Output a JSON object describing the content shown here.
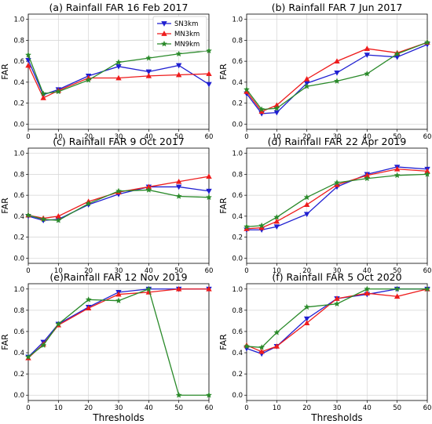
{
  "chart_data": [
    {
      "type": "line",
      "title": "(a) Rainfall FAR 16 Feb 2017",
      "xlabel": "",
      "ylabel": "FAR",
      "xlim": [
        0,
        60
      ],
      "ylim": [
        -0.05,
        1.05
      ],
      "xticks": [
        0,
        10,
        20,
        30,
        40,
        50,
        60
      ],
      "yticks": [
        0.0,
        0.2,
        0.4,
        0.6,
        0.8,
        1.0
      ],
      "grid": true,
      "legend": "top-right",
      "x": [
        0,
        5,
        10,
        20,
        30,
        40,
        50,
        60
      ],
      "series": [
        {
          "name": "SN3km",
          "color": "#1f1fd1",
          "marker": "triangle-down",
          "values": [
            0.61,
            0.28,
            0.33,
            0.46,
            0.55,
            0.5,
            0.56,
            0.38
          ]
        },
        {
          "name": "MN3km",
          "color": "#ee1c1c",
          "marker": "triangle-up",
          "values": [
            0.56,
            0.25,
            0.32,
            0.44,
            0.44,
            0.46,
            0.47,
            0.48
          ]
        },
        {
          "name": "MN9km",
          "color": "#2a8a2a",
          "marker": "star",
          "values": [
            0.66,
            0.29,
            0.31,
            0.42,
            0.59,
            0.63,
            0.67,
            0.7
          ]
        }
      ]
    },
    {
      "type": "line",
      "title": "(b) Rainfall FAR 7 Jun 2017",
      "xlabel": "",
      "ylabel": "FAR",
      "xlim": [
        0,
        60
      ],
      "ylim": [
        -0.05,
        1.05
      ],
      "xticks": [
        0,
        10,
        20,
        30,
        40,
        50,
        60
      ],
      "yticks": [
        0.0,
        0.2,
        0.4,
        0.6,
        0.8,
        1.0
      ],
      "grid": true,
      "x": [
        0,
        5,
        10,
        20,
        30,
        40,
        50,
        60
      ],
      "series": [
        {
          "color": "#1f1fd1",
          "marker": "triangle-down",
          "values": [
            0.29,
            0.1,
            0.11,
            0.39,
            0.49,
            0.66,
            0.64,
            0.76
          ]
        },
        {
          "color": "#ee1c1c",
          "marker": "triangle-up",
          "values": [
            0.31,
            0.12,
            0.18,
            0.43,
            0.6,
            0.72,
            0.68,
            0.78
          ]
        },
        {
          "color": "#2a8a2a",
          "marker": "star",
          "values": [
            0.33,
            0.14,
            0.15,
            0.36,
            0.41,
            0.48,
            0.67,
            0.78
          ]
        }
      ]
    },
    {
      "type": "line",
      "title": "(c) Rainfall FAR 9 Oct 2017",
      "xlabel": "",
      "ylabel": "FAR",
      "xlim": [
        0,
        60
      ],
      "ylim": [
        -0.05,
        1.05
      ],
      "xticks": [
        0,
        10,
        20,
        30,
        40,
        50,
        60
      ],
      "yticks": [
        0.0,
        0.2,
        0.4,
        0.6,
        0.8,
        1.0
      ],
      "grid": true,
      "x": [
        0,
        5,
        10,
        20,
        30,
        40,
        50,
        60
      ],
      "series": [
        {
          "color": "#1f1fd1",
          "marker": "triangle-down",
          "values": [
            0.4,
            0.36,
            0.37,
            0.51,
            0.61,
            0.68,
            0.68,
            0.64
          ]
        },
        {
          "color": "#ee1c1c",
          "marker": "triangle-up",
          "values": [
            0.41,
            0.38,
            0.4,
            0.54,
            0.63,
            0.68,
            0.73,
            0.78
          ]
        },
        {
          "color": "#2a8a2a",
          "marker": "star",
          "values": [
            0.41,
            0.37,
            0.36,
            0.52,
            0.64,
            0.65,
            0.59,
            0.58
          ]
        }
      ]
    },
    {
      "type": "line",
      "title": "(d) Rainfall FAR 22 Apr 2019",
      "xlabel": "",
      "ylabel": "FAR",
      "xlim": [
        0,
        60
      ],
      "ylim": [
        -0.05,
        1.05
      ],
      "xticks": [
        0,
        10,
        20,
        30,
        40,
        50,
        60
      ],
      "yticks": [
        0.0,
        0.2,
        0.4,
        0.6,
        0.8,
        1.0
      ],
      "grid": true,
      "x": [
        0,
        5,
        10,
        20,
        30,
        40,
        50,
        60
      ],
      "series": [
        {
          "color": "#1f1fd1",
          "marker": "triangle-down",
          "values": [
            0.27,
            0.27,
            0.3,
            0.42,
            0.68,
            0.8,
            0.87,
            0.85
          ]
        },
        {
          "color": "#ee1c1c",
          "marker": "triangle-up",
          "values": [
            0.28,
            0.29,
            0.35,
            0.51,
            0.7,
            0.79,
            0.85,
            0.83
          ]
        },
        {
          "color": "#2a8a2a",
          "marker": "star",
          "values": [
            0.3,
            0.31,
            0.39,
            0.58,
            0.72,
            0.76,
            0.79,
            0.8
          ]
        }
      ]
    },
    {
      "type": "line",
      "title": "(e)Rainfall FAR 12 Nov 2019",
      "xlabel": "Thresholds",
      "ylabel": "FAR",
      "xlim": [
        0,
        60
      ],
      "ylim": [
        -0.05,
        1.05
      ],
      "xticks": [
        0,
        10,
        20,
        30,
        40,
        50,
        60
      ],
      "yticks": [
        0.0,
        0.2,
        0.4,
        0.6,
        0.8,
        1.0
      ],
      "grid": true,
      "x": [
        0,
        5,
        10,
        20,
        30,
        40,
        50,
        60
      ],
      "series": [
        {
          "color": "#1f1fd1",
          "marker": "triangle-down",
          "values": [
            0.36,
            0.5,
            0.67,
            0.83,
            0.97,
            1.0,
            1.0,
            1.0
          ]
        },
        {
          "color": "#ee1c1c",
          "marker": "triangle-up",
          "values": [
            0.35,
            0.48,
            0.66,
            0.82,
            0.95,
            0.97,
            1.0,
            1.0
          ]
        },
        {
          "color": "#2a8a2a",
          "marker": "star",
          "values": [
            0.36,
            0.47,
            0.67,
            0.9,
            0.89,
            1.0,
            0.0,
            0.0
          ]
        }
      ]
    },
    {
      "type": "line",
      "title": "(f) Rainfall FAR 5 Oct 2020",
      "xlabel": "Thresholds",
      "ylabel": "FAR",
      "xlim": [
        0,
        60
      ],
      "ylim": [
        -0.05,
        1.05
      ],
      "xticks": [
        0,
        10,
        20,
        30,
        40,
        50,
        60
      ],
      "yticks": [
        0.0,
        0.2,
        0.4,
        0.6,
        0.8,
        1.0
      ],
      "grid": true,
      "x": [
        0,
        5,
        10,
        20,
        30,
        40,
        50,
        60
      ],
      "series": [
        {
          "color": "#1f1fd1",
          "marker": "triangle-down",
          "values": [
            0.44,
            0.39,
            0.46,
            0.72,
            0.91,
            0.95,
            1.0,
            1.0
          ]
        },
        {
          "color": "#ee1c1c",
          "marker": "triangle-up",
          "values": [
            0.47,
            0.41,
            0.46,
            0.68,
            0.91,
            0.96,
            0.93,
            1.0
          ]
        },
        {
          "color": "#2a8a2a",
          "marker": "star",
          "values": [
            0.46,
            0.45,
            0.59,
            0.83,
            0.86,
            1.0,
            1.0,
            1.0
          ]
        }
      ]
    }
  ]
}
